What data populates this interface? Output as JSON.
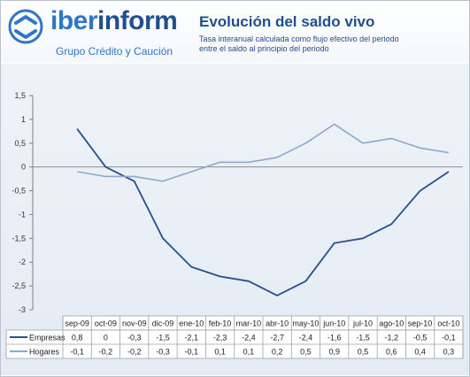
{
  "header": {
    "brand_part1": "iber",
    "brand_part2": "inform",
    "brand_sub": "Grupo Crédito y Caución",
    "title": "Evolución del saldo vivo",
    "subtitle_line1": "Tasa interanual calculada como flujo efectivo del periodo",
    "subtitle_line2": "entre el saldo al principio del periodo"
  },
  "colors": {
    "brand_light": "#2f75c8",
    "brand_dark": "#1f4f8e",
    "empresas": "#2a4f8a",
    "hogares": "#8ea8cc"
  },
  "chart_data": {
    "type": "line",
    "title": "Evolución del saldo vivo",
    "categories": [
      "sep-09",
      "oct-09",
      "nov-09",
      "dic-09",
      "ene-10",
      "feb-10",
      "mar-10",
      "abr-10",
      "may-10",
      "jun-10",
      "jul-10",
      "ago-10",
      "sep-10",
      "oct-10"
    ],
    "ylim": [
      -3,
      1.5
    ],
    "yticks": [
      "1,5",
      "1",
      "0,5",
      "0",
      "-0,5",
      "-1",
      "-1,5",
      "-2",
      "-2,5",
      "-3"
    ],
    "grid": false,
    "legend": "data-table",
    "series": [
      {
        "name": "Empresas",
        "values": [
          0.8,
          0,
          -0.3,
          -1.5,
          -2.1,
          -2.3,
          -2.4,
          -2.7,
          -2.4,
          -1.6,
          -1.5,
          -1.2,
          -0.5,
          -0.1
        ],
        "labels": [
          "0,8",
          "0",
          "-0,3",
          "-1,5",
          "-2,1",
          "-2,3",
          "-2,4",
          "-2,7",
          "-2,4",
          "-1,6",
          "-1,5",
          "-1,2",
          "-0,5",
          "-0,1"
        ]
      },
      {
        "name": "Hogares",
        "values": [
          -0.1,
          -0.2,
          -0.2,
          -0.3,
          -0.1,
          0.1,
          0.1,
          0.2,
          0.5,
          0.9,
          0.5,
          0.6,
          0.4,
          0.3
        ],
        "labels": [
          "-0,1",
          "-0,2",
          "-0,2",
          "-0,3",
          "-0,1",
          "0,1",
          "0,1",
          "0,2",
          "0,5",
          "0,9",
          "0,5",
          "0,6",
          "0,4",
          "0,3"
        ]
      }
    ]
  }
}
